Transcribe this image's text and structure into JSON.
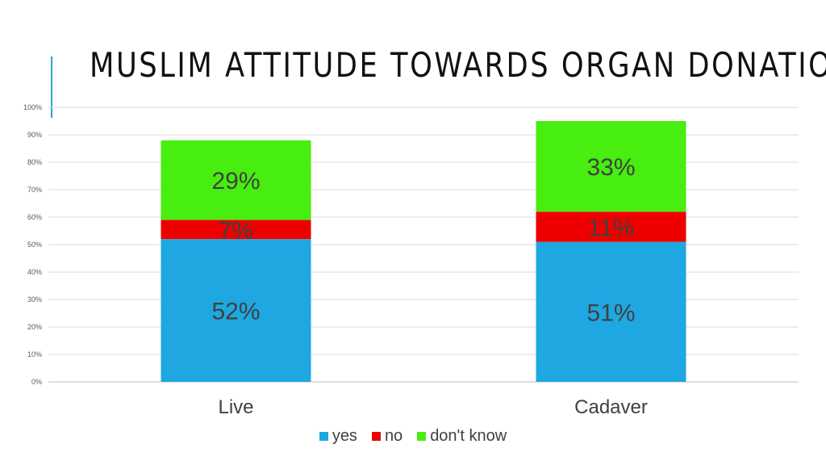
{
  "slide": {
    "title": "MUSLIM ATTITUDE TOWARDS ORGAN DONATION"
  },
  "chart_data": {
    "type": "bar",
    "stacked": true,
    "categories": [
      "Live",
      "Cadaver"
    ],
    "series": [
      {
        "name": "yes",
        "color": "#1ea7e1",
        "values": [
          52,
          51
        ],
        "labels": [
          "52%",
          "51%"
        ]
      },
      {
        "name": "no",
        "color": "#ee0000",
        "values": [
          7,
          11
        ],
        "labels": [
          "7%",
          "11%"
        ]
      },
      {
        "name": "don't know",
        "color": "#47ee0f",
        "values": [
          29,
          33
        ],
        "labels": [
          "29%",
          "33%"
        ]
      }
    ],
    "y_ticks": [
      "0%",
      "10%",
      "20%",
      "30%",
      "40%",
      "50%",
      "60%",
      "70%",
      "80%",
      "90%",
      "100%"
    ],
    "ylim": [
      0,
      100
    ],
    "grid": true,
    "legend_position": "bottom"
  }
}
